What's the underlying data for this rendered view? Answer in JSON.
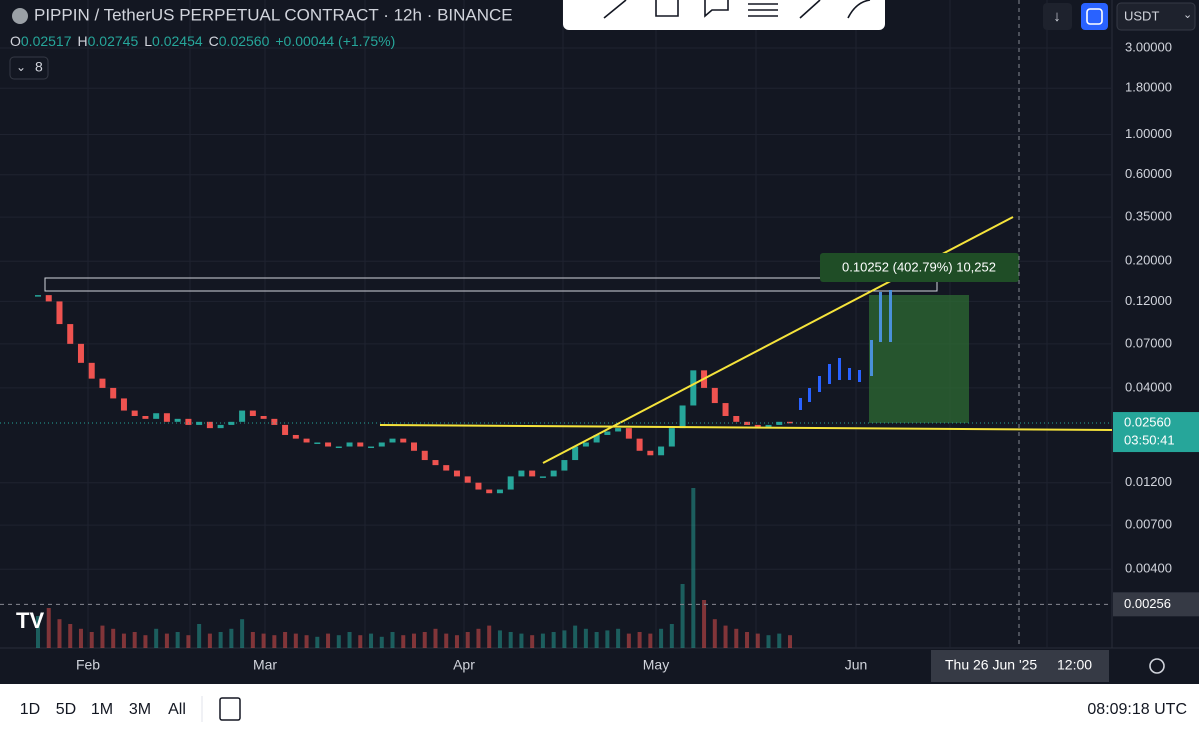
{
  "header": {
    "symbol": "PIPPIN / TetherUS PERPETUAL CONTRACT · 12h · BINANCE",
    "ohlc": [
      {
        "key": "O",
        "value": "0.02517"
      },
      {
        "key": "H",
        "value": "0.02745"
      },
      {
        "key": "L",
        "value": "0.02454"
      },
      {
        "key": "C",
        "value": "0.02560"
      }
    ],
    "change": "+0.00044 (+1.75%)",
    "indicator_count": "8",
    "currency": "USDT"
  },
  "chart_data": {
    "type": "candlestick",
    "closes": [
      0.13,
      0.12,
      0.09,
      0.07,
      0.055,
      0.045,
      0.04,
      0.035,
      0.03,
      0.028,
      0.027,
      0.029,
      0.026,
      0.027,
      0.025,
      0.026,
      0.024,
      0.025,
      0.026,
      0.03,
      0.028,
      0.027,
      0.025,
      0.022,
      0.021,
      0.02,
      0.02,
      0.019,
      0.019,
      0.02,
      0.019,
      0.019,
      0.02,
      0.021,
      0.02,
      0.018,
      0.016,
      0.015,
      0.014,
      0.013,
      0.012,
      0.011,
      0.0105,
      0.011,
      0.013,
      0.014,
      0.013,
      0.013,
      0.014,
      0.016,
      0.019,
      0.02,
      0.022,
      0.023,
      0.024,
      0.021,
      0.018,
      0.017,
      0.019,
      0.024,
      0.032,
      0.05,
      0.04,
      0.033,
      0.028,
      0.026,
      0.025,
      0.024,
      0.025,
      0.026,
      0.0256
    ],
    "volume": [
      20,
      25,
      18,
      15,
      12,
      10,
      14,
      12,
      9,
      10,
      8,
      12,
      9,
      10,
      8,
      15,
      9,
      10,
      12,
      18,
      10,
      9,
      8,
      10,
      9,
      8,
      7,
      9,
      8,
      10,
      8,
      9,
      7,
      10,
      8,
      9,
      10,
      12,
      9,
      8,
      10,
      12,
      14,
      11,
      10,
      9,
      8,
      9,
      10,
      11,
      14,
      12,
      10,
      11,
      12,
      9,
      10,
      9,
      12,
      15,
      40,
      100,
      30,
      18,
      14,
      12,
      10,
      9,
      8,
      9,
      8
    ],
    "up_color": "#26a69a",
    "down_color": "#ef5350",
    "log_scale": true,
    "grid": true,
    "ylim": [
      0.00147,
      5.52
    ],
    "yticks": [
      {
        "value": 3,
        "label": "3.00000"
      },
      {
        "value": 1.8,
        "label": "1.80000"
      },
      {
        "value": 1,
        "label": "1.00000"
      },
      {
        "value": 0.6,
        "label": "0.60000"
      },
      {
        "value": 0.35,
        "label": "0.35000"
      },
      {
        "value": 0.2,
        "label": "0.20000"
      },
      {
        "value": 0.12,
        "label": "0.12000"
      },
      {
        "value": 0.07,
        "label": "0.07000"
      },
      {
        "value": 0.04,
        "label": "0.04000"
      },
      {
        "value": 0.012,
        "label": "0.01200"
      },
      {
        "value": 0.007,
        "label": "0.00700"
      },
      {
        "value": 0.004,
        "label": "0.00400"
      }
    ],
    "last_price": {
      "value": 0.0256,
      "label": "0.02560"
    },
    "countdown": "03:50:41",
    "crosshair_price": {
      "value": 0.00256,
      "label": "0.00256"
    },
    "x_labels": [
      "Feb",
      "Mar",
      "Apr",
      "May",
      "Jun"
    ],
    "crosshair_time": "Thu 26 Jun '25",
    "crosshair_clock": "12:00",
    "measure_label": "0.10252 (402.79%) 10,252"
  },
  "footer": {
    "ranges": [
      "1D",
      "5D",
      "1M",
      "3M",
      "All"
    ],
    "clock": "08:09:18 UTC"
  }
}
